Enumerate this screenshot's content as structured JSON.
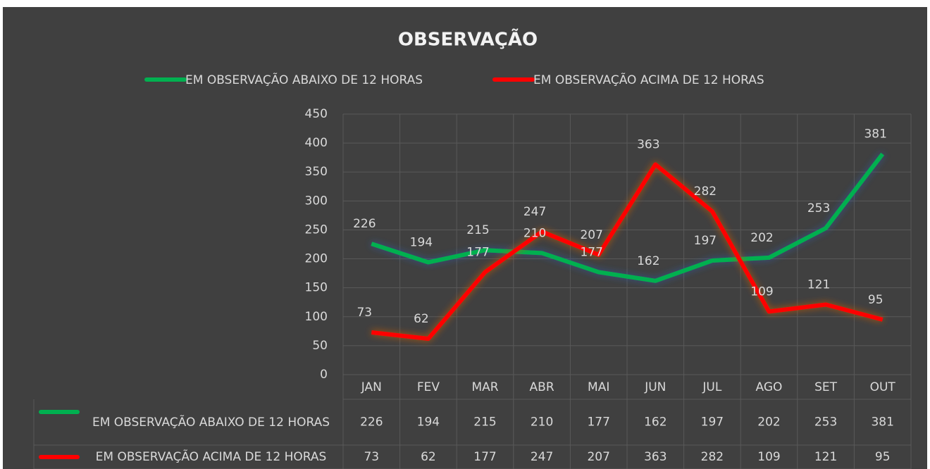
{
  "chart_data": {
    "type": "line",
    "title": "OBSERVAÇÃO",
    "categories": [
      "JAN",
      "FEV",
      "MAR",
      "ABR",
      "MAI",
      "JUN",
      "JUL",
      "AGO",
      "SET",
      "OUT"
    ],
    "series": [
      {
        "name": "EM OBSERVAÇÃO ABAIXO DE 12 HORAS",
        "color": "#00b050",
        "glow": "#2f5597",
        "values": [
          226,
          194,
          215,
          210,
          177,
          162,
          197,
          202,
          253,
          381
        ]
      },
      {
        "name": "EM OBSERVAÇÃO ACIMA DE 12 HORAS",
        "color": "#ff0000",
        "glow": "#c55a11",
        "values": [
          73,
          62,
          177,
          247,
          207,
          363,
          282,
          109,
          121,
          95
        ]
      }
    ],
    "ylim": [
      0,
      450
    ],
    "yticks": [
      0,
      50,
      100,
      150,
      200,
      250,
      300,
      350,
      400,
      450
    ],
    "grid": true,
    "legend": "top"
  }
}
